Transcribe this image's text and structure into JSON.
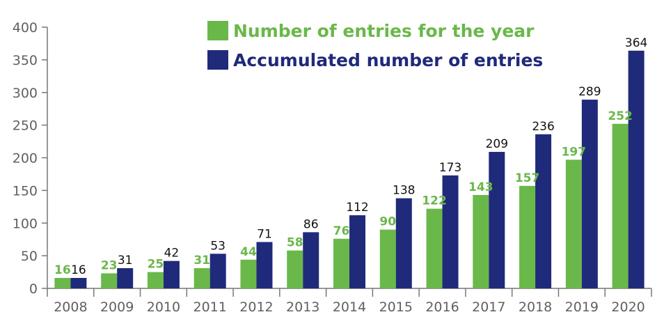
{
  "chart_data": {
    "type": "bar",
    "categories": [
      "2008",
      "2009",
      "2010",
      "2011",
      "2012",
      "2013",
      "2014",
      "2015",
      "2016",
      "2017",
      "2018",
      "2019",
      "2020"
    ],
    "series": [
      {
        "name": "Number of entries for the year",
        "values": [
          16,
          23,
          25,
          31,
          44,
          58,
          76,
          90,
          122,
          143,
          157,
          197,
          252
        ],
        "color": "#6ab84a",
        "label_color": "#6ab84a"
      },
      {
        "name": "Accumulated number of entries",
        "values": [
          16,
          31,
          42,
          53,
          71,
          86,
          112,
          138,
          173,
          209,
          236,
          289,
          364
        ],
        "color": "#1f2a7a",
        "label_color": "#111111"
      }
    ],
    "y_ticks": [
      "0",
      "50",
      "100",
      "150",
      "200",
      "250",
      "300",
      "350",
      "400"
    ],
    "ylim": [
      0,
      400
    ],
    "grid": false,
    "legend_position": "top",
    "title": "",
    "xlabel": "",
    "ylabel": ""
  }
}
